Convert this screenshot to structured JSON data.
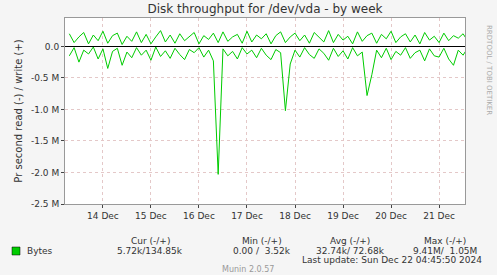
{
  "chart_data": {
    "type": "line",
    "title": "Disk throughput for /dev/vda - by week",
    "y_label": "Pr second read (-) / write (+)",
    "x": [
      13.3,
      13.4,
      13.5,
      13.6,
      13.7,
      13.8,
      13.9,
      14.0,
      14.1,
      14.2,
      14.3,
      14.4,
      14.5,
      14.6,
      14.7,
      14.8,
      14.9,
      15.0,
      15.1,
      15.2,
      15.3,
      15.4,
      15.5,
      15.6,
      15.7,
      15.8,
      15.9,
      16.0,
      16.1,
      16.2,
      16.3,
      16.4,
      16.5,
      16.6,
      16.7,
      16.8,
      16.9,
      17.0,
      17.1,
      17.2,
      17.3,
      17.4,
      17.5,
      17.6,
      17.7,
      17.8,
      17.9,
      18.0,
      18.1,
      18.2,
      18.3,
      18.4,
      18.5,
      18.6,
      18.7,
      18.8,
      18.9,
      19.0,
      19.1,
      19.2,
      19.3,
      19.4,
      19.5,
      19.6,
      19.7,
      19.8,
      19.9,
      20.0,
      20.1,
      20.2,
      20.3,
      20.4,
      20.5,
      20.6,
      20.7,
      20.8,
      20.9,
      21.0,
      21.1,
      21.2,
      21.3,
      21.4,
      21.5,
      21.6
    ],
    "series": [
      {
        "name": "Bytes",
        "color": "#00cc00",
        "values": [
          200000,
          60000,
          150000,
          220000,
          40000,
          180000,
          90000,
          240000,
          50000,
          170000,
          210000,
          30000,
          160000,
          80000,
          230000,
          60000,
          190000,
          40000,
          150000,
          250000,
          70000,
          180000,
          50000,
          200000,
          90000,
          160000,
          220000,
          40000,
          170000,
          110000,
          210000,
          60000,
          230000,
          80000,
          150000,
          190000,
          50000,
          240000,
          70000,
          180000,
          120000,
          200000,
          40000,
          170000,
          230000,
          60000,
          150000,
          210000,
          90000,
          180000,
          50000,
          220000,
          140000,
          70000,
          250000,
          60000,
          190000,
          100000,
          160000,
          40000,
          230000,
          80000,
          170000,
          210000,
          50000,
          190000,
          120000,
          240000,
          60000,
          150000,
          200000,
          70000,
          180000,
          40000,
          220000,
          100000,
          160000,
          60000,
          210000,
          90000,
          170000,
          130000,
          200000,
          80000
        ],
        "read_values": [
          -150000,
          -20000,
          -250000,
          -60000,
          -120000,
          -10000,
          -200000,
          -40000,
          -350000,
          -80000,
          -30000,
          -300000,
          -90000,
          -180000,
          -20000,
          -140000,
          -60000,
          -220000,
          -10000,
          -160000,
          -70000,
          -190000,
          -30000,
          -130000,
          -210000,
          -50000,
          -100000,
          -20000,
          -170000,
          -60000,
          -230000,
          -2030000,
          -40000,
          -150000,
          -80000,
          -200000,
          -20000,
          -120000,
          -60000,
          -180000,
          -30000,
          -140000,
          -210000,
          -50000,
          -100000,
          -1020000,
          -280000,
          -60000,
          -170000,
          -20000,
          -130000,
          -190000,
          -40000,
          -110000,
          -220000,
          -30000,
          -160000,
          -70000,
          -200000,
          -20000,
          -150000,
          -90000,
          -780000,
          -450000,
          -60000,
          -180000,
          -30000,
          -210000,
          -80000,
          -140000,
          -20000,
          -190000,
          -100000,
          -60000,
          -230000,
          -40000,
          -150000,
          -170000,
          -30000,
          -200000,
          -300000,
          -60000,
          -140000,
          -20000
        ]
      }
    ],
    "xlim": [
      13.21,
      21.54
    ],
    "xticks": [
      {
        "value": 14,
        "label": "14 Dec"
      },
      {
        "value": 15,
        "label": "15 Dec"
      },
      {
        "value": 16,
        "label": "16 Dec"
      },
      {
        "value": 17,
        "label": "17 Dec"
      },
      {
        "value": 18,
        "label": "18 Dec"
      },
      {
        "value": 19,
        "label": "19 Dec"
      },
      {
        "value": 20,
        "label": "20 Dec"
      },
      {
        "value": 21,
        "label": "21 Dec"
      }
    ],
    "ylim": [
      -2500000,
      450000
    ],
    "yticks": [
      {
        "value": 0,
        "label": "0.0"
      },
      {
        "value": -500000,
        "label": "-0.5 M"
      },
      {
        "value": -1000000,
        "label": "-1.0 M"
      },
      {
        "value": -1500000,
        "label": "-1.5 M"
      },
      {
        "value": -2000000,
        "label": "-2.0 M"
      },
      {
        "value": -2500000,
        "label": "-2.5 M"
      }
    ],
    "grid": true,
    "stats": {
      "columns": [
        "Cur (-/+)",
        "Min (-/+)",
        "Avg (-/+)",
        "Max (-/+)"
      ],
      "values": [
        "5.72k/134.85k",
        "0.00 /  3.52k",
        "32.74k/ 72.68k",
        "9.41M/  1.05M"
      ]
    },
    "footer": "Last update: Sun Dec 22 04:45:50 2024",
    "credit": "Munin 2.0.57",
    "watermark": "RRDTOOL / TOBI OETIKER"
  }
}
